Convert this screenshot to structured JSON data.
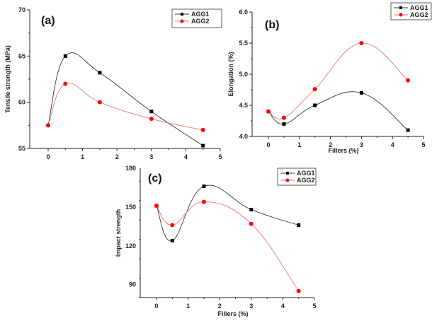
{
  "chart_data": [
    {
      "type": "line",
      "panel_label": "(a)",
      "title": "",
      "xlabel": "",
      "ylabel": "Tensile strength (MPa)",
      "x": [
        0,
        0.5,
        1.5,
        3,
        4.5
      ],
      "xlim": [
        -0.4,
        5
      ],
      "ylim": [
        55,
        70
      ],
      "xticks": [
        "0",
        "1",
        "2",
        "3",
        "4",
        "5"
      ],
      "yticks": [
        "55",
        "60",
        "65",
        "70"
      ],
      "grid": false,
      "legend_position": "top-right",
      "series": [
        {
          "name": "AGG1",
          "color": "#000000",
          "marker": "square",
          "values": [
            57.5,
            65.0,
            63.2,
            59.0,
            55.3
          ]
        },
        {
          "name": "AGG2",
          "color": "#ff0000",
          "marker": "circle",
          "values": [
            57.5,
            62.0,
            60.0,
            58.2,
            57.0
          ]
        }
      ]
    },
    {
      "type": "line",
      "panel_label": "(b)",
      "title": "",
      "xlabel": "Fillers (%)",
      "ylabel": "Elongation (%)",
      "x": [
        0,
        0.5,
        1.5,
        3,
        4.5
      ],
      "xlim": [
        -0.5,
        5
      ],
      "ylim": [
        4.0,
        6.0
      ],
      "xticks": [
        "0",
        "1",
        "2",
        "3",
        "4",
        "5"
      ],
      "yticks": [
        "4.0",
        "4.5",
        "5.0",
        "5.5",
        "6.0"
      ],
      "grid": false,
      "legend_position": "top-right",
      "series": [
        {
          "name": "AGG1",
          "color": "#000000",
          "marker": "square",
          "values": [
            4.4,
            4.2,
            4.5,
            4.7,
            4.1
          ]
        },
        {
          "name": "AGG2",
          "color": "#ff0000",
          "marker": "circle",
          "values": [
            4.4,
            4.3,
            4.76,
            5.5,
            4.9
          ]
        }
      ]
    },
    {
      "type": "line",
      "panel_label": "(c)",
      "title": "",
      "xlabel": "Fillers (%)",
      "ylabel": "Impact strength",
      "x": [
        0,
        0.5,
        1.5,
        3,
        4.5
      ],
      "xlim": [
        -0.5,
        5
      ],
      "ylim": [
        80,
        180
      ],
      "xticks": [
        "0",
        "1",
        "2",
        "3",
        "4",
        "5"
      ],
      "yticks": [
        "90",
        "120",
        "150",
        "180"
      ],
      "grid": false,
      "legend_position": "top-right",
      "series": [
        {
          "name": "AGG1",
          "color": "#000000",
          "marker": "square",
          "values": [
            151,
            124,
            166,
            148,
            136
          ]
        },
        {
          "name": "AGG2",
          "color": "#ff0000",
          "marker": "circle",
          "values": [
            151,
            136,
            154,
            137,
            85
          ]
        }
      ]
    }
  ]
}
